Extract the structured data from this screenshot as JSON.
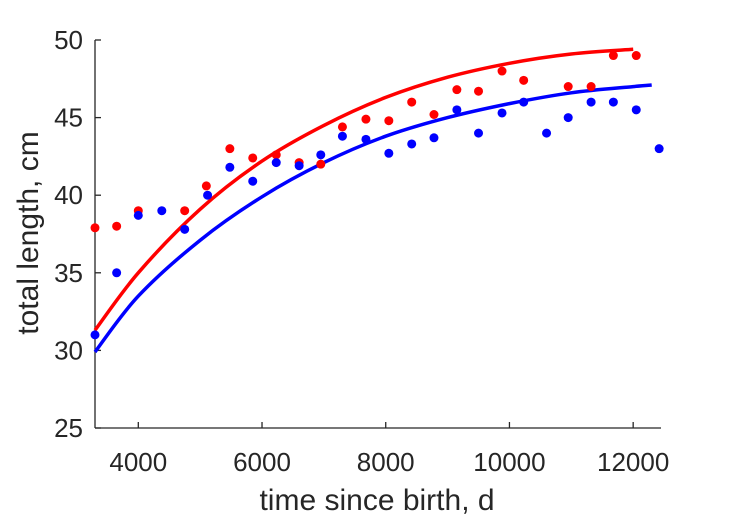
{
  "chart_data": {
    "type": "scatter",
    "xlabel": "time since birth, d",
    "ylabel": "total length, cm",
    "xlim": [
      3300,
      12450
    ],
    "ylim": [
      25,
      50
    ],
    "xticks": [
      4000,
      6000,
      8000,
      10000,
      12000
    ],
    "yticks": [
      25,
      30,
      35,
      40,
      45,
      50
    ],
    "xtick_labels": [
      "4000",
      "6000",
      "8000",
      "10000",
      "12000"
    ],
    "ytick_labels": [
      "25",
      "30",
      "35",
      "40",
      "45",
      "50"
    ],
    "grid": false,
    "series": [
      {
        "color": "#ff0000",
        "points": [
          [
            3300,
            37.9
          ],
          [
            3650,
            38.0
          ],
          [
            4000,
            39.0
          ],
          [
            4750,
            39.0
          ],
          [
            5100,
            40.6
          ],
          [
            5480,
            43.0
          ],
          [
            5850,
            42.4
          ],
          [
            6230,
            42.6
          ],
          [
            6600,
            42.1
          ],
          [
            6950,
            42.0
          ],
          [
            7300,
            44.4
          ],
          [
            7680,
            44.9
          ],
          [
            8050,
            44.8
          ],
          [
            8420,
            46.0
          ],
          [
            8780,
            45.2
          ],
          [
            9150,
            46.8
          ],
          [
            9500,
            46.7
          ],
          [
            9880,
            48.0
          ],
          [
            10230,
            47.4
          ],
          [
            10950,
            47.0
          ],
          [
            11320,
            47.0
          ],
          [
            11680,
            49.0
          ],
          [
            12050,
            49.0
          ]
        ],
        "fit": [
          [
            3300,
            31.3
          ],
          [
            4000,
            35.0
          ],
          [
            5000,
            39.1
          ],
          [
            6000,
            42.2
          ],
          [
            7000,
            44.5
          ],
          [
            8000,
            46.3
          ],
          [
            9000,
            47.6
          ],
          [
            10000,
            48.5
          ],
          [
            11000,
            49.1
          ],
          [
            12000,
            49.4
          ]
        ]
      },
      {
        "color": "#0000ff",
        "points": [
          [
            3300,
            31.0
          ],
          [
            3650,
            35.0
          ],
          [
            4000,
            38.7
          ],
          [
            4380,
            39.0
          ],
          [
            4750,
            37.8
          ],
          [
            5120,
            40.0
          ],
          [
            5480,
            41.8
          ],
          [
            5850,
            40.9
          ],
          [
            6230,
            42.1
          ],
          [
            6600,
            41.9
          ],
          [
            6950,
            42.6
          ],
          [
            7300,
            43.8
          ],
          [
            7680,
            43.6
          ],
          [
            8050,
            42.7
          ],
          [
            8420,
            43.3
          ],
          [
            8780,
            43.7
          ],
          [
            9150,
            45.5
          ],
          [
            9500,
            44.0
          ],
          [
            9880,
            45.3
          ],
          [
            10230,
            46.0
          ],
          [
            10600,
            44.0
          ],
          [
            10950,
            45.0
          ],
          [
            11320,
            46.0
          ],
          [
            11680,
            46.0
          ],
          [
            12050,
            45.5
          ],
          [
            12420,
            43.0
          ]
        ],
        "fit": [
          [
            3300,
            29.9
          ],
          [
            4000,
            33.5
          ],
          [
            5000,
            37.1
          ],
          [
            6000,
            39.9
          ],
          [
            7000,
            42.1
          ],
          [
            8000,
            43.8
          ],
          [
            9000,
            45.0
          ],
          [
            10000,
            45.9
          ],
          [
            11000,
            46.6
          ],
          [
            12000,
            47.0
          ],
          [
            12300,
            47.1
          ]
        ]
      }
    ]
  }
}
